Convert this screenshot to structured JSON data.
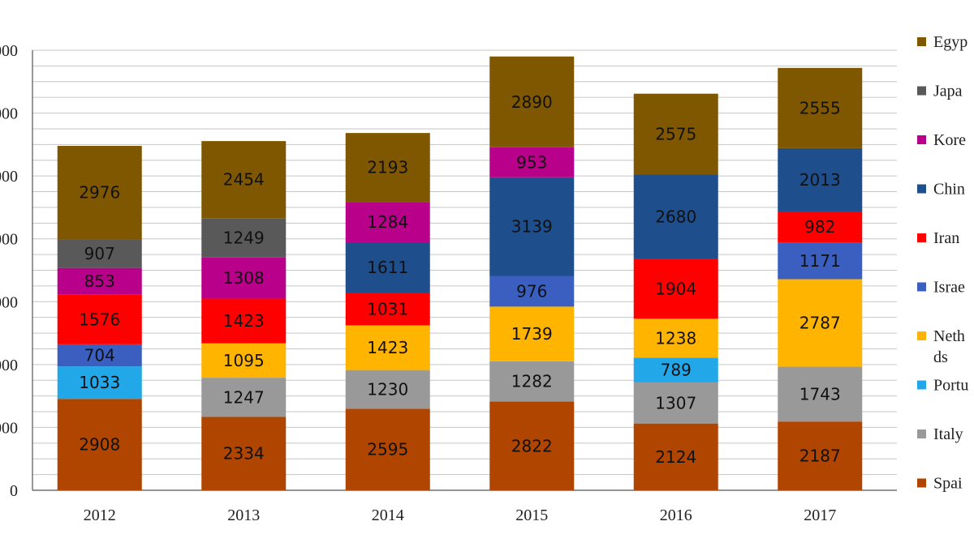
{
  "chart_data": {
    "type": "bar",
    "stacked": true,
    "categories": [
      "2012",
      "2013",
      "2014",
      "2015",
      "2016",
      "2017"
    ],
    "series": [
      {
        "name": "Spain",
        "color": "#b04500",
        "values": [
          2908,
          2334,
          2595,
          2822,
          2124,
          2187
        ]
      },
      {
        "name": "Italy",
        "color": "#999999",
        "values": [
          0,
          1247,
          1230,
          1282,
          1307,
          1743
        ]
      },
      {
        "name": "Portugal",
        "color": "#22a7e9",
        "values": [
          1033,
          0,
          0,
          0,
          789,
          0
        ]
      },
      {
        "name": "Netherlands",
        "color": "#ffb400",
        "values": [
          0,
          1095,
          1423,
          1739,
          1238,
          2787
        ]
      },
      {
        "name": "Israel",
        "color": "#3a5fc0",
        "values": [
          704,
          0,
          0,
          976,
          0,
          1171
        ]
      },
      {
        "name": "Iran",
        "color": "#ff0000",
        "values": [
          1576,
          1423,
          1031,
          0,
          1904,
          982
        ]
      },
      {
        "name": "China",
        "color": "#1f4e8c",
        "values": [
          0,
          0,
          1611,
          3139,
          2680,
          2013
        ]
      },
      {
        "name": "Korea",
        "color": "#b8008a",
        "values": [
          853,
          1308,
          1284,
          953,
          0,
          0
        ]
      },
      {
        "name": "Japan",
        "color": "#595959",
        "values": [
          907,
          1249,
          0,
          0,
          0,
          0
        ]
      },
      {
        "name": "Egypt",
        "color": "#7f5700",
        "values": [
          2976,
          2454,
          2193,
          2890,
          2575,
          2555
        ]
      }
    ],
    "y_ticks": [
      "0",
      "000",
      "000",
      "000",
      "000",
      "000",
      "000",
      "000"
    ],
    "ylim": [
      0,
      14000
    ],
    "grid": true,
    "legend_position": "right",
    "legend_labels": [
      "Egyp",
      "Japa",
      "Kore",
      "Chin",
      "Iran",
      "Israe",
      "Neth\nds",
      "Portu",
      "Italy",
      "Spai"
    ]
  }
}
